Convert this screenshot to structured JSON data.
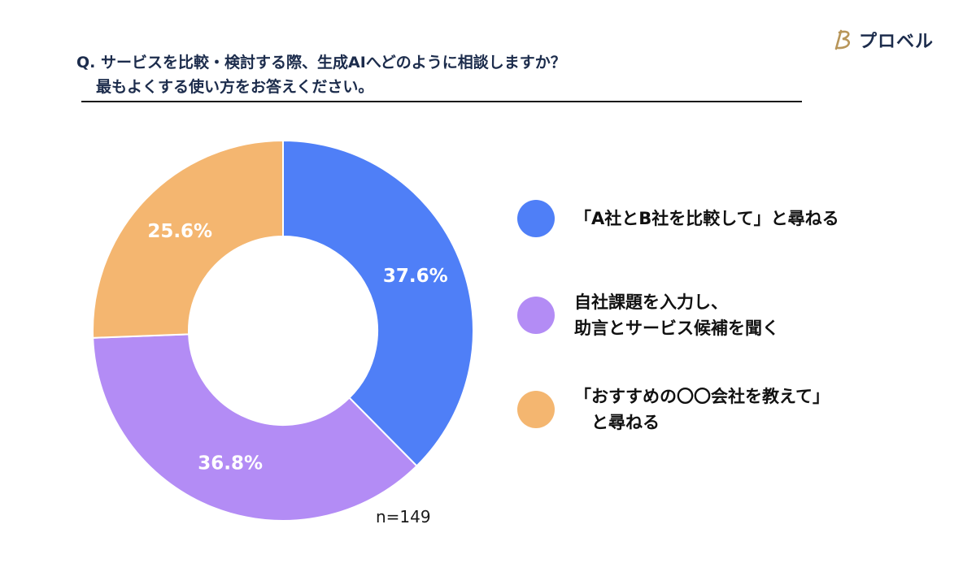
{
  "question": {
    "line1": "Q. サービスを比較・検討する際、生成AIへどのように相談しますか？",
    "line2": "最もよくする使い方をお答えください。"
  },
  "logo": {
    "text": "プロベル",
    "mark_icon": "stylized-b-logo-icon",
    "mark_color": "#b8965a"
  },
  "sample_size": "n=149",
  "chart_data": {
    "type": "pie",
    "donut": true,
    "title": "",
    "start_angle_deg": 0,
    "direction": "clockwise",
    "slices": [
      {
        "label": "「A社とB社を比較して」と尋ねる",
        "value": 37.6,
        "value_label": "37.6%",
        "color": "#4f7ff7"
      },
      {
        "label": "自社課題を入力し、\n助言とサービス候補を聞く",
        "value": 36.8,
        "value_label": "36.8%",
        "color": "#b38cf5"
      },
      {
        "label": "「おすすめの〇〇会社を教えて」\n　と尋ねる",
        "value": 25.6,
        "value_label": "25.6%",
        "color": "#f4b670"
      }
    ],
    "legend_position": "right"
  }
}
